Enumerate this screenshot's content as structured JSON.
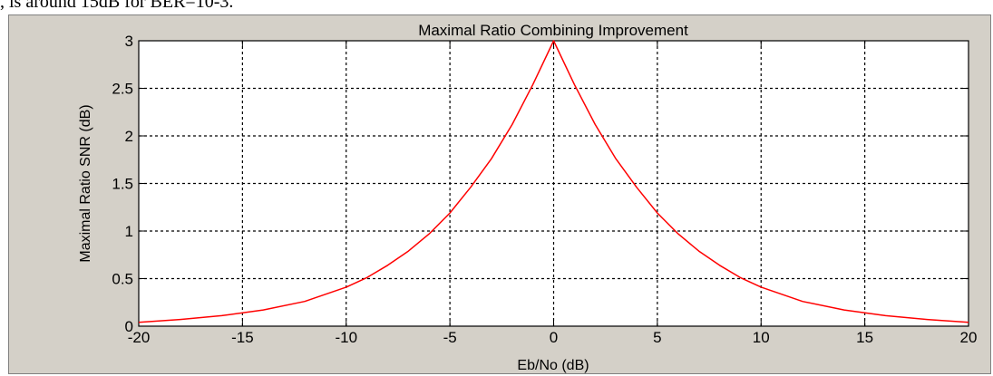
{
  "page": {
    "cut_text": ", is around 15dB for BER=10-3."
  },
  "chart_data": {
    "type": "line",
    "title": "Maximal Ratio Combining Improvement",
    "xlabel": "Eb/No (dB)",
    "ylabel": "Maximal Ratio SNR (dB)",
    "xlim": [
      -20,
      20
    ],
    "ylim": [
      0,
      3
    ],
    "xticks": [
      -20,
      -15,
      -10,
      -5,
      0,
      5,
      10,
      15,
      20
    ],
    "yticks": [
      0,
      0.5,
      1,
      1.5,
      2,
      2.5,
      3
    ],
    "xtick_labels": [
      "-20",
      "-15",
      "-10",
      "-5",
      "0",
      "5",
      "10",
      "15",
      "20"
    ],
    "ytick_labels": [
      "0",
      "0.5",
      "1",
      "1.5",
      "2",
      "2.5",
      "3"
    ],
    "grid": true,
    "grid_style": "dashed",
    "series": [
      {
        "color": "#ff0000",
        "x": [
          -20,
          -18,
          -16,
          -14,
          -12,
          -10,
          -9,
          -8,
          -7,
          -6,
          -5,
          -4,
          -3,
          -2,
          -1,
          0,
          1,
          2,
          3,
          4,
          5,
          6,
          7,
          8,
          9,
          10,
          12,
          14,
          16,
          18,
          20
        ],
        "y": [
          0.04,
          0.07,
          0.11,
          0.17,
          0.26,
          0.41,
          0.51,
          0.64,
          0.79,
          0.97,
          1.19,
          1.46,
          1.76,
          2.12,
          2.54,
          3.0,
          2.54,
          2.12,
          1.76,
          1.46,
          1.19,
          0.97,
          0.79,
          0.64,
          0.51,
          0.41,
          0.26,
          0.17,
          0.11,
          0.07,
          0.04
        ]
      }
    ]
  }
}
